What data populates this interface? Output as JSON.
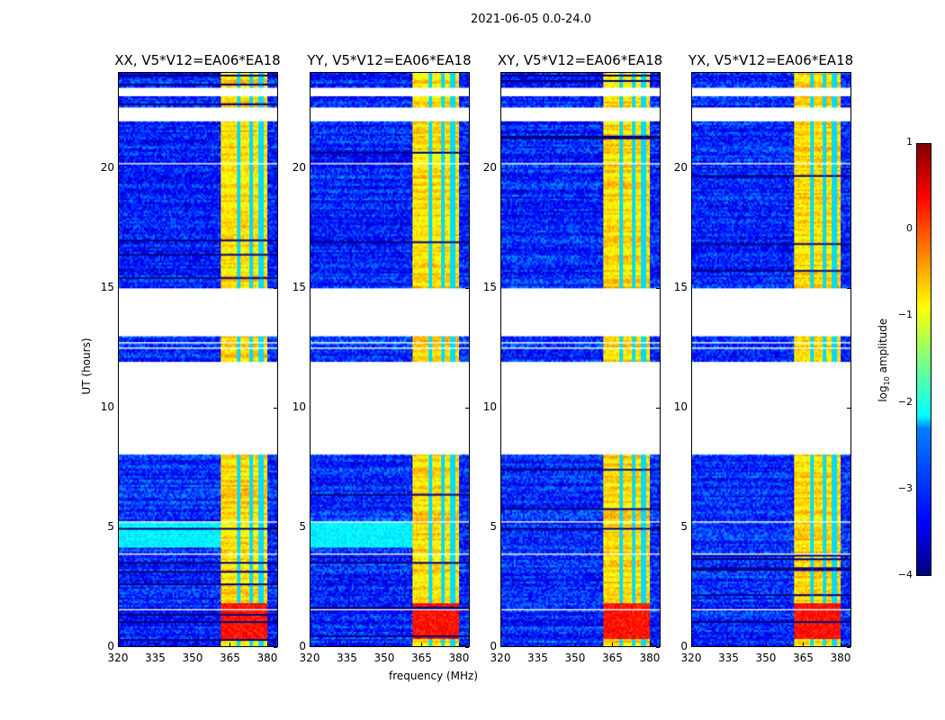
{
  "chart_data": {
    "type": "heatmap",
    "title": "2021-06-05 0.0-24.0",
    "xlabel": "frequency (MHz)",
    "ylabel": "UT (hours)",
    "xlim": [
      320,
      384
    ],
    "ylim": [
      0,
      24
    ],
    "x_ticks": [
      "320",
      "335",
      "350",
      "365",
      "380"
    ],
    "x_tick_values": [
      320,
      335,
      350,
      365,
      380
    ],
    "y_ticks": [
      "0",
      "5",
      "10",
      "15",
      "20"
    ],
    "y_tick_values": [
      0,
      5,
      10,
      15,
      20
    ],
    "panels": [
      {
        "title": "XX, V5*V12=EA06*EA18",
        "fringe_band": true
      },
      {
        "title": "YY, V5*V12=EA06*EA18",
        "fringe_band": true
      },
      {
        "title": "XY, V5*V12=EA06*EA18",
        "fringe_band": false
      },
      {
        "title": "YX, V5*V12=EA06*EA18",
        "fringe_band": false
      }
    ],
    "flagged_hours": [
      [
        8.0,
        11.9
      ],
      [
        13.0,
        15.0
      ],
      [
        22.0,
        22.6
      ],
      [
        23.0,
        23.4
      ],
      [
        12.45,
        12.55
      ],
      [
        12.7,
        12.75
      ],
      [
        1.5,
        1.55
      ],
      [
        3.85,
        3.9
      ],
      [
        5.2,
        5.25
      ],
      [
        20.15,
        20.25
      ],
      [
        19.4,
        19.45
      ],
      [
        17.9,
        17.95
      ],
      [
        16.7,
        16.75
      ]
    ],
    "background_level": -3.2,
    "rfi_band": {
      "freq": [
        361,
        380
      ],
      "level": -0.7,
      "gaps_mhz": [
        368.5,
        373.5,
        377.5
      ]
    },
    "burst": {
      "hours": [
        0.3,
        1.8
      ],
      "freq": [
        361,
        380
      ],
      "level": 0.3
    },
    "fringe": {
      "hours": [
        4.1,
        5.2
      ],
      "freq": [
        320,
        361
      ],
      "level": -2.2
    },
    "colorbar": {
      "label": "log10 amplitude",
      "label_main": "log",
      "label_sub": "10",
      "label_rest": " amplitude",
      "range": [
        -4,
        1
      ],
      "ticks": [
        "1",
        "0",
        "−1",
        "−2",
        "−3",
        "−4"
      ]
    }
  }
}
